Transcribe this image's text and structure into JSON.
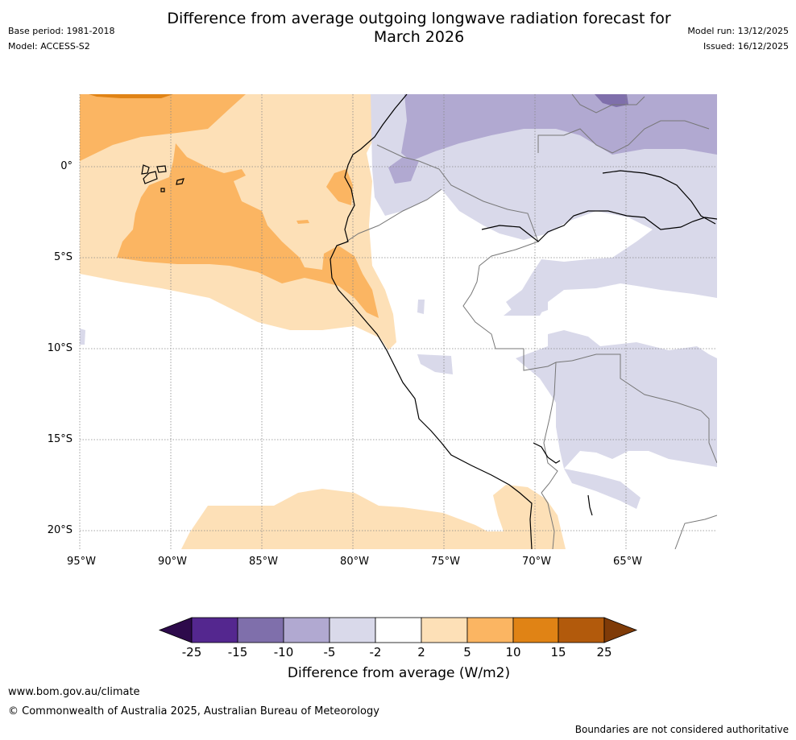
{
  "header": {
    "title_line1": "Difference from average outgoing longwave radiation forecast for",
    "title_line2": "March 2026",
    "base_period": "Base period: 1981-2018",
    "model": "Model: ACCESS-S2",
    "model_run": "Model run: 13/12/2025",
    "issued": "Issued: 16/12/2025"
  },
  "map": {
    "lat_labels": [
      "0°",
      "5°S",
      "10°S",
      "15°S",
      "20°S"
    ],
    "lon_labels": [
      "95°W",
      "90°W",
      "85°W",
      "80°W",
      "75°W",
      "70°W",
      "65°W"
    ],
    "colors": {
      "neg25": "#2d0a4b",
      "neg15": "#54278f",
      "neg10": "#7f6fab",
      "neg5": "#b1a9d1",
      "neg2": "#d9d9ea",
      "zero": "#ffffff",
      "pos2": "#fde0b7",
      "pos5": "#fbb562",
      "pos10": "#e08315",
      "pos15": "#b25a0c",
      "pos25": "#7f3b08"
    }
  },
  "colorbar": {
    "ticks": [
      "-25",
      "-15",
      "-10",
      "-5",
      "-2",
      "2",
      "5",
      "10",
      "15",
      "25"
    ],
    "label": "Difference from average (W/m2)"
  },
  "footer": {
    "site": "www.bom.gov.au/climate",
    "copyright": "© Commonwealth of Australia 2025, Australian Bureau of Meteorology",
    "disclaimer": "Boundaries are not considered authoritative"
  }
}
